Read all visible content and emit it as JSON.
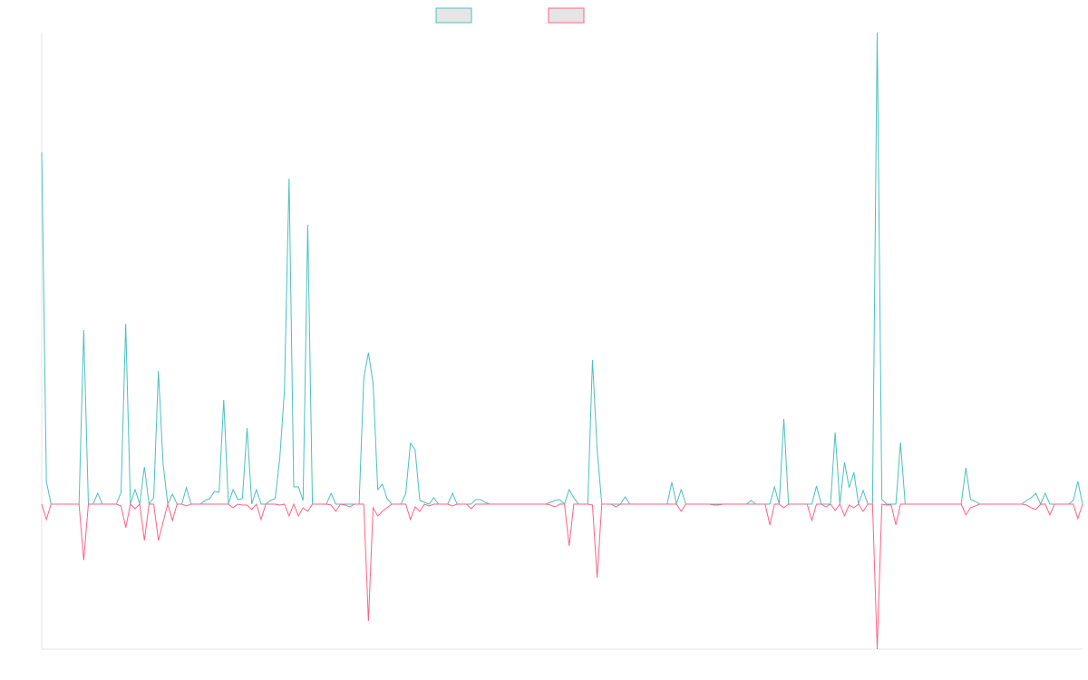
{
  "chart_data": {
    "type": "line",
    "title": "",
    "xlabel": "",
    "ylabel": "",
    "ylim": [
      -160,
      520
    ],
    "grid": false,
    "legend": "top-center",
    "series": [
      {
        "name": "",
        "color": "#4bc0c0",
        "values": [
          388,
          25,
          0,
          0,
          0,
          0,
          0,
          0,
          0,
          192,
          0,
          0,
          12,
          0,
          0,
          0,
          0,
          13,
          199,
          0,
          16,
          0,
          41,
          0,
          7,
          147,
          45,
          0,
          11,
          0,
          0,
          18,
          0,
          0,
          0,
          4,
          6,
          14,
          13,
          115,
          0,
          16,
          5,
          6,
          84,
          0,
          16,
          0,
          0,
          4,
          6,
          50,
          125,
          359,
          19,
          19,
          4,
          308,
          0,
          0,
          0,
          0,
          12,
          0,
          0,
          0,
          0,
          0,
          0,
          139,
          167,
          133,
          16,
          22,
          6,
          0,
          0,
          0,
          12,
          67,
          60,
          4,
          2,
          0,
          7,
          0,
          0,
          0,
          12,
          0,
          0,
          0,
          0,
          5,
          5,
          2,
          0,
          0,
          0,
          0,
          0,
          0,
          0,
          0,
          0,
          0,
          0,
          0,
          0,
          2,
          4,
          5,
          0,
          16,
          7,
          0,
          0,
          0,
          159,
          60,
          0,
          0,
          0,
          0,
          0,
          8,
          0,
          0,
          0,
          0,
          0,
          0,
          0,
          0,
          0,
          24,
          0,
          16,
          0,
          0,
          0,
          0,
          0,
          0,
          0,
          0,
          0,
          0,
          0,
          0,
          0,
          0,
          4,
          0,
          0,
          0,
          0,
          19,
          0,
          94,
          0,
          0,
          0,
          0,
          0,
          0,
          20,
          0,
          0,
          0,
          79,
          0,
          46,
          18,
          35,
          0,
          15,
          0,
          0,
          520,
          5,
          0,
          0,
          0,
          68,
          0,
          0,
          0,
          0,
          0,
          0,
          0,
          0,
          0,
          0,
          0,
          0,
          0,
          40,
          5,
          3,
          0,
          0,
          0,
          0,
          0,
          0,
          0,
          0,
          0,
          0,
          4,
          7,
          12,
          0,
          12,
          0,
          0,
          0,
          0,
          0,
          4,
          25,
          0
        ]
      },
      {
        "name": "",
        "color": "#ff6384",
        "values": [
          0,
          -17,
          0,
          0,
          0,
          0,
          0,
          0,
          0,
          -62,
          0,
          0,
          0,
          0,
          0,
          0,
          0,
          -2,
          -26,
          0,
          -5,
          0,
          -40,
          0,
          0,
          -40,
          -20,
          0,
          -18,
          0,
          0,
          -2,
          0,
          0,
          0,
          0,
          0,
          0,
          0,
          0,
          0,
          -4,
          0,
          -1,
          -1,
          -6,
          0,
          -17,
          0,
          0,
          0,
          -1,
          0,
          -13,
          0,
          -13,
          -4,
          -8,
          0,
          0,
          0,
          0,
          -1,
          -8,
          0,
          -1,
          -3,
          0,
          0,
          0,
          -129,
          -4,
          -13,
          -8,
          -4,
          0,
          0,
          0,
          0,
          -17,
          -3,
          -8,
          0,
          -2,
          0,
          0,
          0,
          0,
          -2,
          0,
          0,
          0,
          -5,
          0,
          0,
          0,
          0,
          0,
          0,
          0,
          0,
          0,
          0,
          0,
          0,
          0,
          0,
          0,
          0,
          -1,
          -3,
          0,
          0,
          -46,
          0,
          0,
          0,
          0,
          -1,
          -81,
          0,
          0,
          0,
          -3,
          0,
          0,
          0,
          0,
          0,
          0,
          0,
          0,
          0,
          0,
          0,
          0,
          0,
          -8,
          0,
          0,
          0,
          0,
          0,
          0,
          -1,
          -1,
          0,
          0,
          0,
          0,
          0,
          0,
          0,
          0,
          0,
          0,
          -23,
          0,
          0,
          -4,
          0,
          0,
          0,
          0,
          0,
          -18,
          0,
          0,
          -3,
          0,
          -7,
          0,
          -13,
          -1,
          -4,
          0,
          -8,
          0,
          0,
          -160,
          0,
          -1,
          -1,
          -23,
          0,
          0,
          0,
          0,
          0,
          0,
          0,
          0,
          0,
          0,
          0,
          0,
          0,
          0,
          -12,
          -4,
          -2,
          0,
          0,
          0,
          0,
          0,
          0,
          0,
          0,
          0,
          0,
          -1,
          -4,
          -6,
          0,
          0,
          -12,
          0,
          0,
          0,
          0,
          0,
          -16,
          0
        ]
      }
    ]
  }
}
